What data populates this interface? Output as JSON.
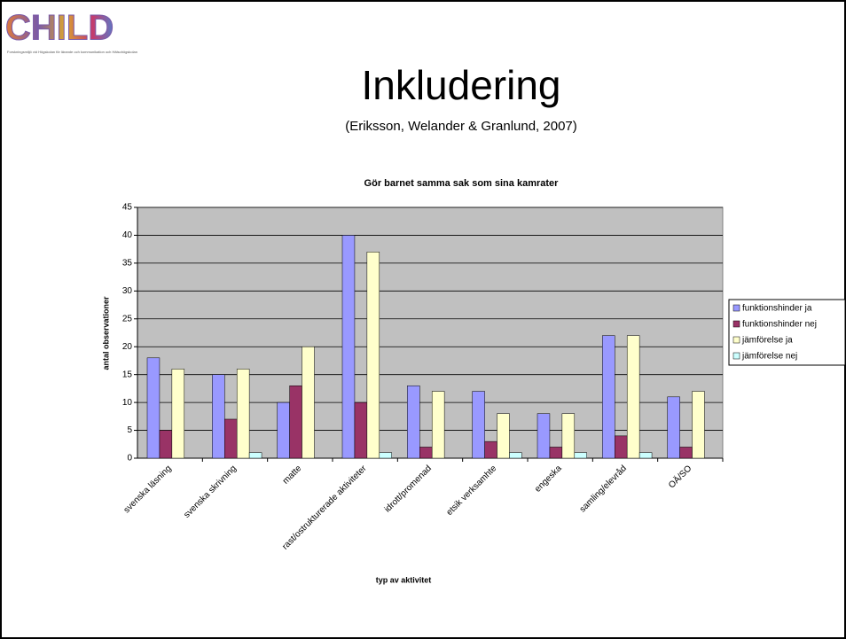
{
  "header": {
    "logo": "CHILD",
    "logo_subtext": "Forskningsmiljö vid Högskolan för lärande och kommunikation och Hälsohögskolan",
    "title": "Inkludering",
    "subtitle": "(Eriksson, Welander & Granlund, 2007)"
  },
  "chart_data": {
    "type": "bar",
    "title": "Gör barnet samma sak som sina kamrater",
    "x_label": "typ av aktivitet",
    "y_label": "antal observationer",
    "categories": [
      "svenska läsning",
      "svenska skrivning",
      "matte",
      "rast/ostrukturerade aktiviteter",
      "idrott/promenad",
      "etsik verksamhte",
      "engeska",
      "samling/elevråd",
      "OÄ/SO"
    ],
    "series": [
      {
        "name": "funktionshinder ja",
        "color": "#9999ff",
        "values": [
          18,
          15,
          10,
          40,
          13,
          12,
          8,
          22,
          11
        ]
      },
      {
        "name": "funktionshinder nej",
        "color": "#993366",
        "values": [
          5,
          7,
          13,
          10,
          2,
          3,
          2,
          4,
          2
        ]
      },
      {
        "name": "jämförelse ja",
        "color": "#ffffcc",
        "values": [
          16,
          16,
          20,
          37,
          12,
          8,
          8,
          22,
          12
        ]
      },
      {
        "name": "jämförelse nej",
        "color": "#ccffff",
        "values": [
          0,
          1,
          0,
          1,
          0,
          1,
          1,
          1,
          0
        ]
      }
    ],
    "ylim": [
      0,
      45
    ],
    "yticks": [
      0,
      5,
      10,
      15,
      20,
      25,
      30,
      35,
      40,
      45
    ],
    "grid": true,
    "legend": "right",
    "background": "#c0c0c0"
  }
}
